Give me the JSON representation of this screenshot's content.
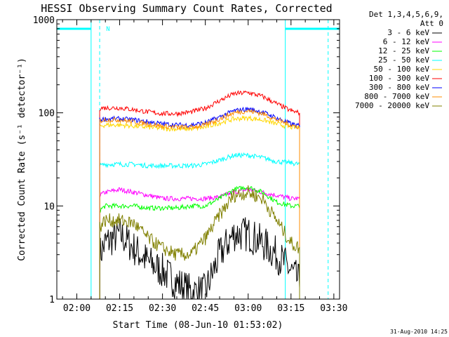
{
  "chart_data": {
    "type": "line",
    "title": "HESSI Observing Summary Count Rates, Corrected",
    "xlabel": "Start Time (08-Jun-10 01:53:02)",
    "ylabel": "Corrected Count Rate (s⁻¹ detector⁻¹)",
    "yscale": "log",
    "ylim": [
      1,
      1000
    ],
    "xlim": [
      "01:53",
      "03:32"
    ],
    "x_ticks": [
      "02:00",
      "02:15",
      "02:30",
      "02:45",
      "03:00",
      "03:15",
      "03:30"
    ],
    "y_ticks": [
      "1",
      "10",
      "100",
      "1000"
    ],
    "legend_header": [
      "Det 1,3,4,5,6,9,",
      "Att 0"
    ],
    "legend_position": "right, outside plot",
    "x_times": [
      "02:08",
      "02:10",
      "02:15",
      "02:20",
      "02:25",
      "02:30",
      "02:35",
      "02:40",
      "02:45",
      "02:50",
      "02:55",
      "03:00",
      "03:05",
      "03:10",
      "03:15",
      "03:18"
    ],
    "series": [
      {
        "name": "3 - 6 keV",
        "color": "#000000",
        "values": [
          3,
          4,
          5,
          3.5,
          2.5,
          2,
          1.5,
          1.2,
          1.2,
          3,
          5,
          5,
          4,
          3,
          2,
          1.5
        ]
      },
      {
        "name": "6 - 12 keV",
        "color": "#ff00ff",
        "values": [
          13,
          14,
          15,
          14,
          13,
          12,
          12,
          12,
          12,
          12.5,
          14,
          15,
          14,
          13,
          12,
          12
        ]
      },
      {
        "name": "12 - 25 keV",
        "color": "#00ff00",
        "values": [
          9,
          10,
          10,
          10,
          9.5,
          9.5,
          9.5,
          10,
          10,
          12,
          15,
          16,
          14,
          11,
          10,
          10
        ]
      },
      {
        "name": "25 - 50 keV",
        "color": "#00ffff",
        "values": [
          27,
          28,
          28,
          28,
          27,
          27,
          27,
          27,
          28,
          31,
          35,
          35,
          33,
          30,
          29,
          28
        ]
      },
      {
        "name": "50 - 100 keV",
        "color": "#ffd700",
        "values": [
          72,
          74,
          74,
          72,
          70,
          68,
          67,
          67,
          70,
          78,
          86,
          88,
          84,
          76,
          70,
          70
        ]
      },
      {
        "name": "100 - 300 keV",
        "color": "#ff0000",
        "values": [
          112,
          113,
          113,
          108,
          102,
          98,
          98,
          102,
          112,
          135,
          160,
          165,
          150,
          125,
          105,
          100
        ]
      },
      {
        "name": "300 - 800 keV",
        "color": "#0000ff",
        "values": [
          84,
          86,
          86,
          84,
          80,
          76,
          74,
          74,
          78,
          90,
          105,
          110,
          102,
          88,
          76,
          72
        ]
      },
      {
        "name": "800 - 7000 keV",
        "color": "#ff8c00",
        "values": [
          82,
          84,
          84,
          80,
          76,
          72,
          70,
          70,
          74,
          86,
          100,
          105,
          98,
          84,
          74,
          70
        ]
      },
      {
        "name": "7000 - 20000 keV",
        "color": "#808000",
        "values": [
          6,
          7,
          7,
          6.5,
          4.5,
          3.5,
          3,
          3,
          4.5,
          8,
          13,
          14,
          12,
          7,
          4,
          3.5
        ]
      }
    ],
    "flag_bars": [
      {
        "start": "01:53",
        "end": "02:05",
        "color": "#00ffff"
      },
      {
        "start": "03:13",
        "end": "03:32",
        "color": "#00ffff"
      }
    ],
    "flag_letter": "N",
    "vertical_markers": [
      {
        "time": "02:05",
        "style": "solid",
        "color": "#00ffff"
      },
      {
        "time": "02:08",
        "style": "dashed",
        "color": "#00ffff"
      },
      {
        "time": "03:13",
        "style": "solid",
        "color": "#00ffff"
      },
      {
        "time": "03:28",
        "style": "dashed",
        "color": "#00ffff"
      }
    ],
    "timestamp": "31-Aug-2010 14:25"
  }
}
